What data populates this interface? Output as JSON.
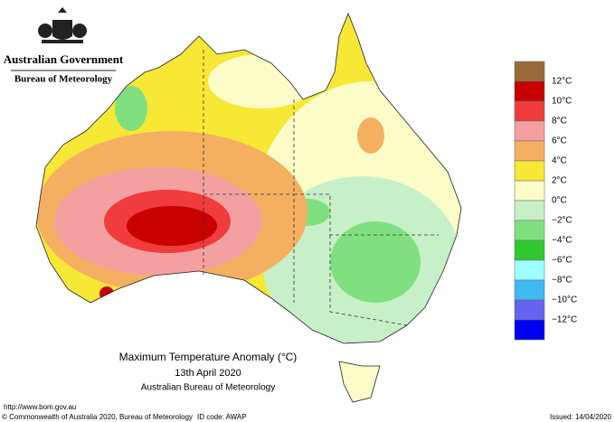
{
  "header": {
    "government": "Australian Government",
    "agency": "Bureau of Meteorology"
  },
  "map": {
    "title": "Maximum Temperature Anomaly (°C)",
    "date": "13th April 2020",
    "source": "Australian Bureau of Meteorology"
  },
  "legend": {
    "colors": [
      "#9a6a3a",
      "#c80000",
      "#f03c3c",
      "#f4a0a0",
      "#f4b060",
      "#f8e836",
      "#fcfcc8",
      "#c8f0c8",
      "#80e080",
      "#30c830",
      "#a0ffff",
      "#40b8f0",
      "#6464f0",
      "#0000f0"
    ],
    "labels": [
      "12°C",
      "10°C",
      "8°C",
      "6°C",
      "4°C",
      "2°C",
      "0°C",
      "−2°C",
      "−4°C",
      "−6°C",
      "−8°C",
      "−10°C",
      "−12°C"
    ]
  },
  "footer": {
    "url": "http://www.bom.gov.au",
    "copyright": "© Commonwealth of Australia 2020, Bureau of Meteorology",
    "id_code": "ID code: AWAP",
    "issued": "Issued: 14/04/2020"
  }
}
